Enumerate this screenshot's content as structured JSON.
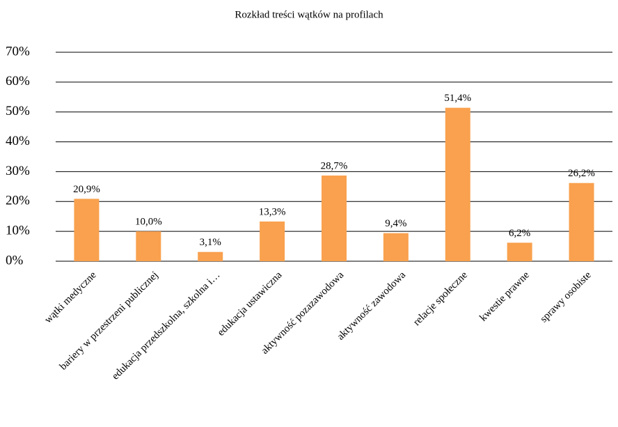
{
  "chart_data": {
    "type": "bar",
    "title": "Rozkład treści wątków na profilach",
    "categories": [
      "wątki medyczne",
      "bariery w przestrzeni publicznej",
      "edukacja przedszkolna, szkolna i…",
      "edukacja ustawiczna",
      "aktywność pozazawodowa",
      "aktywność zawodowa",
      "relacje społeczne",
      "kwestie prawne",
      "sprawy osobiste"
    ],
    "values": [
      20.9,
      10.0,
      3.1,
      13.3,
      28.7,
      9.4,
      51.4,
      6.2,
      26.2
    ],
    "value_labels": [
      "20,9%",
      "10,0%",
      "3,1%",
      "13,3%",
      "28,7%",
      "9,4%",
      "51,4%",
      "6,2%",
      "26,2%"
    ],
    "color": "#f9a14e",
    "ylim": [
      0,
      70
    ],
    "yticks": [
      {
        "value": 0,
        "label": "0%"
      },
      {
        "value": 10,
        "label": "10%"
      },
      {
        "value": 20,
        "label": "20%"
      },
      {
        "value": 30,
        "label": "30%"
      },
      {
        "value": 40,
        "label": "40%"
      },
      {
        "value": 50,
        "label": "50%"
      },
      {
        "value": 60,
        "label": "60%"
      },
      {
        "value": 70,
        "label": "70%"
      }
    ],
    "grid": true
  }
}
